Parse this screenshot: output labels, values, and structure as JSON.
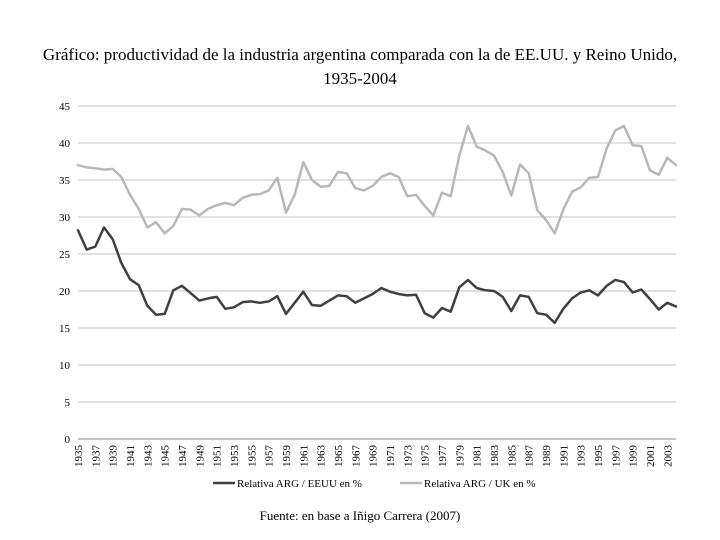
{
  "chart_data": {
    "type": "line",
    "title": "Gráfico: productividad de la industria argentina comparada con la de EE.UU. y Reino Unido, 1935-2004",
    "xlabel": "",
    "ylabel": "",
    "ylim": [
      0,
      45
    ],
    "yticks": [
      "0",
      "5",
      "10",
      "15",
      "20",
      "25",
      "30",
      "35",
      "40",
      "45"
    ],
    "x": [
      1935,
      1936,
      1937,
      1938,
      1939,
      1940,
      1941,
      1942,
      1943,
      1944,
      1945,
      1946,
      1947,
      1948,
      1949,
      1950,
      1951,
      1952,
      1953,
      1954,
      1955,
      1956,
      1957,
      1958,
      1959,
      1960,
      1961,
      1962,
      1963,
      1964,
      1965,
      1966,
      1967,
      1968,
      1969,
      1970,
      1971,
      1972,
      1973,
      1974,
      1975,
      1976,
      1977,
      1978,
      1979,
      1980,
      1981,
      1982,
      1983,
      1984,
      1985,
      1986,
      1987,
      1988,
      1989,
      1990,
      1991,
      1992,
      1993,
      1994,
      1995,
      1996,
      1997,
      1998,
      1999,
      2000,
      2001,
      2002,
      2003,
      2004
    ],
    "xtick_labels": [
      "1935",
      "1937",
      "1939",
      "1941",
      "1943",
      "1945",
      "1947",
      "1949",
      "1951",
      "1953",
      "1955",
      "1957",
      "1959",
      "1961",
      "1963",
      "1965",
      "1967",
      "1969",
      "1971",
      "1973",
      "1975",
      "1977",
      "1979",
      "1981",
      "1983",
      "1985",
      "1987",
      "1989",
      "1991",
      "1993",
      "1995",
      "1997",
      "1999",
      "2001",
      "2003"
    ],
    "grid": true,
    "legend_position": "bottom",
    "series": [
      {
        "name": "Relativa ARG / EEUU en %",
        "color": "#404040",
        "values": [
          28.2,
          25.6,
          26.0,
          28.6,
          27.0,
          23.8,
          21.6,
          20.8,
          18.0,
          16.8,
          16.9,
          20.1,
          20.7,
          19.7,
          18.7,
          19.0,
          19.2,
          17.6,
          17.8,
          18.5,
          18.6,
          18.4,
          18.6,
          19.3,
          16.9,
          18.4,
          19.9,
          18.1,
          18.0,
          18.7,
          19.4,
          19.3,
          18.4,
          19.0,
          19.6,
          20.4,
          19.9,
          19.6,
          19.4,
          19.5,
          17.0,
          16.4,
          17.7,
          17.2,
          20.5,
          21.5,
          20.4,
          20.1,
          20.0,
          19.2,
          17.3,
          19.4,
          19.2,
          17.0,
          16.8,
          15.7,
          17.6,
          19.0,
          19.8,
          20.1,
          19.4,
          20.7,
          21.5,
          21.2,
          19.8,
          20.2,
          18.9,
          17.5,
          18.4,
          17.9
        ]
      },
      {
        "name": "Relativa ARG / UK en %",
        "color": "#b8b8b8",
        "values": [
          37.0,
          36.7,
          36.6,
          36.4,
          36.5,
          35.4,
          33.0,
          31.1,
          28.6,
          29.3,
          27.8,
          28.8,
          31.1,
          31.0,
          30.2,
          31.1,
          31.6,
          31.9,
          31.6,
          32.6,
          33.0,
          33.1,
          33.6,
          35.3,
          30.6,
          33.0,
          37.4,
          35.0,
          34.1,
          34.2,
          36.1,
          35.9,
          33.9,
          33.6,
          34.2,
          35.4,
          35.9,
          35.4,
          32.8,
          33.0,
          31.5,
          30.2,
          33.3,
          32.8,
          38.3,
          42.3,
          39.5,
          39.0,
          38.3,
          36.1,
          32.9,
          37.1,
          35.9,
          30.9,
          29.6,
          27.8,
          31.0,
          33.4,
          34.0,
          35.3,
          35.4,
          39.3,
          41.7,
          42.3,
          39.7,
          39.6,
          36.3,
          35.7,
          38.0,
          37.0
        ]
      }
    ],
    "source": "Fuente: en base a Iñigo Carrera (2007)"
  }
}
